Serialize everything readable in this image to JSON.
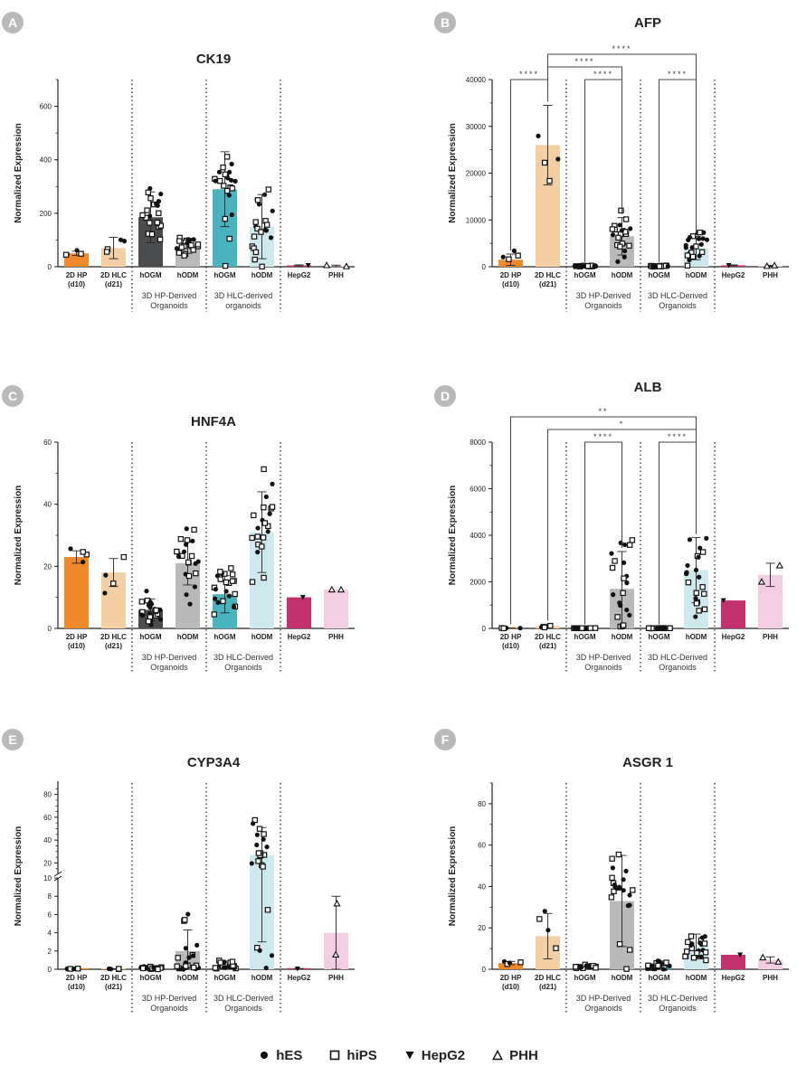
{
  "figure_title": "",
  "colors": {
    "hp2d": "#f0892a",
    "hlc2d": "#f5cfa4",
    "hp_hogm": "#4b4c4e",
    "hp_hodm": "#b9b9bc",
    "hlc_hogm": "#49b3be",
    "hlc_hodm": "#cde9ee",
    "hepg2": "#c2306d",
    "phh": "#f3cde1",
    "badge": "#b9b9b9"
  },
  "legend": [
    {
      "marker": "circle",
      "label": "hES"
    },
    {
      "marker": "square",
      "label": "hiPS"
    },
    {
      "marker": "triangle-down",
      "label": "HepG2"
    },
    {
      "marker": "triangle-up-open",
      "label": "PHH"
    }
  ],
  "chart_data": [
    {
      "panel": "A",
      "type": "bar",
      "title": "CK19",
      "ylabel": "Normalized Expression",
      "ylim": [
        0,
        700
      ],
      "yticks": [
        0,
        200,
        400,
        600
      ],
      "categories": [
        "2D HP (d10)",
        "2D HLC (d21)",
        "hOGM",
        "hODM",
        "hOGM",
        "hODM",
        "HepG2",
        "PHH"
      ],
      "x_labels": [
        [
          "2D HP",
          "(d10)"
        ],
        [
          "2D HLC",
          "(d21)"
        ],
        [
          "hOGM"
        ],
        [
          "hODM"
        ],
        [
          "hOGM"
        ],
        [
          "hODM"
        ],
        [
          "HepG2"
        ],
        [
          "PHH"
        ]
      ],
      "groups": [
        {
          "lines": [
            "3D HP-Derived",
            "Organoids"
          ],
          "from": 2,
          "to": 3
        },
        {
          "lines": [
            "3D HLC-derived",
            "organoids"
          ],
          "from": 4,
          "to": 5
        }
      ],
      "values": [
        50,
        70,
        185,
        78,
        290,
        150,
        5,
        3
      ],
      "errors": [
        8,
        40,
        95,
        28,
        140,
        120,
        2,
        3
      ],
      "comparisons": []
    },
    {
      "panel": "B",
      "type": "bar",
      "title": "AFP",
      "ylabel": "Normalized Expression",
      "ylim": [
        0,
        40000
      ],
      "yticks": [
        0,
        10000,
        20000,
        30000,
        40000
      ],
      "categories": [
        "2D HP (d10)",
        "2D HLC (d21)",
        "hOGM",
        "hODM",
        "hOGM",
        "hODM",
        "HepG2",
        "PHH"
      ],
      "x_labels": [
        [
          "2D HP",
          "(d10)"
        ],
        [
          "2D HLC",
          "(d21)"
        ],
        [
          "hOGM"
        ],
        [
          "hODM"
        ],
        [
          "hOGM"
        ],
        [
          "hODM"
        ],
        [
          "HepG2"
        ],
        [
          "PHH"
        ]
      ],
      "groups": [
        {
          "lines": [
            "3D HP-Derived",
            "Organoids"
          ],
          "from": 2,
          "to": 3
        },
        {
          "lines": [
            "3D HLC-Derived",
            "Organoids"
          ],
          "from": 4,
          "to": 5
        }
      ],
      "values": [
        1500,
        26000,
        150,
        6500,
        150,
        4000,
        300,
        200
      ],
      "errors": [
        1200,
        8500,
        100,
        4000,
        100,
        2500,
        100,
        100
      ],
      "comparisons": [
        {
          "from": 1,
          "to": 5,
          "label": "****"
        },
        {
          "from": 1,
          "to": 3,
          "label": "****"
        },
        {
          "from": 0,
          "to": 1,
          "label": "****"
        },
        {
          "from": 2,
          "to": 3,
          "label": "****"
        },
        {
          "from": 4,
          "to": 5,
          "label": "****"
        }
      ]
    },
    {
      "panel": "C",
      "type": "bar",
      "title": "HNF4A",
      "ylabel": "Normalized Expression",
      "ylim": [
        0,
        60
      ],
      "yticks": [
        0,
        20,
        40,
        60
      ],
      "categories": [
        "2D HP (d10)",
        "2D HLC (d21)",
        "hOGM",
        "hODM",
        "hOGM",
        "hODM",
        "HepG2",
        "PHH"
      ],
      "x_labels": [
        [
          "2D HP",
          "(d10)"
        ],
        [
          "2D HLC",
          "(d21)"
        ],
        [
          "hOGM"
        ],
        [
          "hODM"
        ],
        [
          "hOGM"
        ],
        [
          "hODM"
        ],
        [
          "HepG2"
        ],
        [
          "PHH"
        ]
      ],
      "groups": [
        {
          "lines": [
            "3D HP-Derived",
            "Organoids"
          ],
          "from": 2,
          "to": 3
        },
        {
          "lines": [
            "3D HLC-Derived",
            "Organoids"
          ],
          "from": 4,
          "to": 5
        }
      ],
      "values": [
        23,
        18,
        6,
        21,
        11,
        31,
        10,
        12.5
      ],
      "errors": [
        2,
        4.5,
        3.5,
        7,
        6,
        13,
        0,
        0
      ],
      "comparisons": []
    },
    {
      "panel": "D",
      "type": "bar",
      "title": "ALB",
      "ylabel": "Normalized Expression",
      "ylim": [
        0,
        8000
      ],
      "yticks": [
        0,
        2000,
        4000,
        6000,
        8000
      ],
      "categories": [
        "2D HP (d10)",
        "2D HLC (d21)",
        "hOGM",
        "hODM",
        "hOGM",
        "hODM",
        "HepG2",
        "PHH"
      ],
      "x_labels": [
        [
          "2D HP",
          "(d10)"
        ],
        [
          "2D HLC",
          "(d21)"
        ],
        [
          "hOGM"
        ],
        [
          "hODM"
        ],
        [
          "hOGM"
        ],
        [
          "hODM"
        ],
        [
          "HepG2"
        ],
        [
          "PHH"
        ]
      ],
      "groups": [
        {
          "lines": [
            "3D HP-Derived",
            "Organoids"
          ],
          "from": 2,
          "to": 3
        },
        {
          "lines": [
            "3D HLC-Derived",
            "Organoids"
          ],
          "from": 4,
          "to": 5
        }
      ],
      "values": [
        10,
        100,
        10,
        1700,
        10,
        2500,
        1200,
        2300
      ],
      "errors": [
        5,
        80,
        5,
        1600,
        5,
        1400,
        0,
        500
      ],
      "comparisons": [
        {
          "from": 0,
          "to": 5,
          "label": "**"
        },
        {
          "from": 1,
          "to": 5,
          "label": "*"
        },
        {
          "from": 2,
          "to": 3,
          "label": "****"
        },
        {
          "from": 4,
          "to": 5,
          "label": "****"
        }
      ]
    },
    {
      "panel": "E",
      "type": "bar",
      "title": "CYP3A4",
      "ylabel": "Normalized Expression",
      "y_scale": "broken",
      "y_break": 10,
      "ylim_lower": [
        0,
        10
      ],
      "yticks_lower": [
        0,
        2,
        4,
        6,
        8,
        10
      ],
      "ylim_upper": [
        10,
        90
      ],
      "yticks_upper": [
        20,
        40,
        60,
        80
      ],
      "categories": [
        "2D HP (d10)",
        "2D HLC (d21)",
        "hOGM",
        "hODM",
        "hOGM",
        "hODM",
        "HepG2",
        "PHH"
      ],
      "x_labels": [
        [
          "2D HP",
          "(d10)"
        ],
        [
          "2D HLC",
          "(d21)"
        ],
        [
          "hOGM"
        ],
        [
          "hODM"
        ],
        [
          "hOGM"
        ],
        [
          "hODM"
        ],
        [
          "HepG2"
        ],
        [
          "PHH"
        ]
      ],
      "groups": [
        {
          "lines": [
            "3D HP-Derived",
            "Organoids"
          ],
          "from": 2,
          "to": 3
        },
        {
          "lines": [
            "3D HLC-Derived",
            "Organoids"
          ],
          "from": 4,
          "to": 5
        }
      ],
      "values": [
        0.05,
        0.05,
        0.2,
        2.0,
        0.4,
        27,
        0.05,
        4.0
      ],
      "errors": [
        0.02,
        0.02,
        0.15,
        2.3,
        0.4,
        24,
        0.02,
        4.0
      ],
      "comparisons": []
    },
    {
      "panel": "F",
      "type": "bar",
      "title": "ASGR 1",
      "ylabel": "Normalized Expression",
      "ylim": [
        0,
        90
      ],
      "yticks": [
        0,
        20,
        40,
        60,
        80
      ],
      "categories": [
        "2D HP (d10)",
        "2D HLC (d21)",
        "hOGM",
        "hODM",
        "hOGM",
        "hODM",
        "HepG2",
        "PHH"
      ],
      "x_labels": [
        [
          "2D HP",
          "(d10)"
        ],
        [
          "2D HLC",
          "(d21)"
        ],
        [
          "hOGM"
        ],
        [
          "hODM"
        ],
        [
          "hOGM"
        ],
        [
          "hODM"
        ],
        [
          "HepG2"
        ],
        [
          "PHH"
        ]
      ],
      "groups": [
        {
          "lines": [
            "3D HP-Derived",
            "Organoids"
          ],
          "from": 2,
          "to": 3
        },
        {
          "lines": [
            "3D HLC-Derived",
            "Organoids"
          ],
          "from": 4,
          "to": 5
        }
      ],
      "values": [
        3,
        16,
        1,
        33,
        2,
        11,
        7,
        4.5
      ],
      "errors": [
        0.8,
        11,
        0.7,
        22,
        2,
        6,
        0,
        1.5
      ],
      "comparisons": []
    }
  ]
}
